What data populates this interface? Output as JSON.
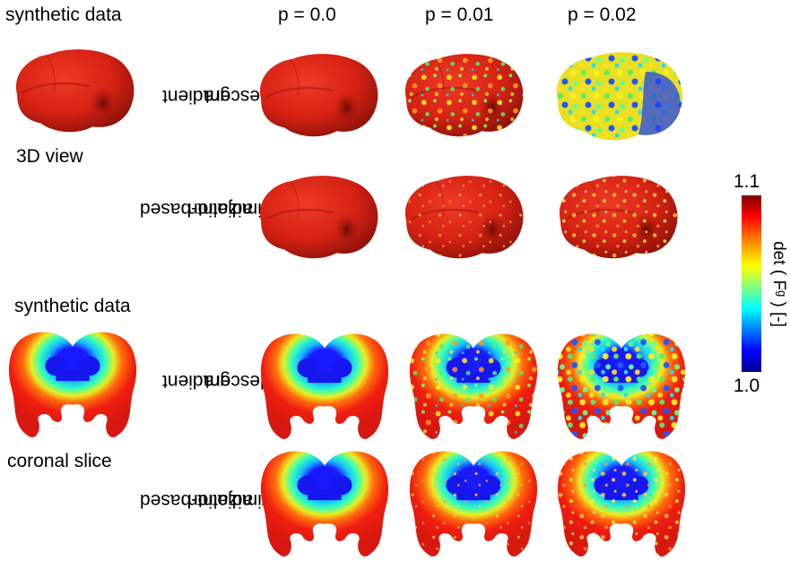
{
  "labels": {
    "synthetic_data_top": "synthetic data",
    "view_3d": "3D view",
    "synthetic_data_bottom": "synthetic data",
    "coronal_slice": "coronal slice"
  },
  "columns": [
    "p = 0.0",
    "p = 0.01",
    "p = 0.02"
  ],
  "methods": {
    "gradient_descent": [
      "gradient",
      "descent"
    ],
    "adjoint": [
      "adjoint-based",
      "optimization"
    ]
  },
  "colorbar": {
    "max": "1.1",
    "min": "1.0",
    "title": "det ( Fᵍ ) [-]",
    "colormap": "jet",
    "colors": [
      "#7f0000",
      "#ff0000",
      "#ff8000",
      "#ffff00",
      "#80ff80",
      "#00ffff",
      "#0080ff",
      "#0000ff",
      "#00008f"
    ]
  }
}
